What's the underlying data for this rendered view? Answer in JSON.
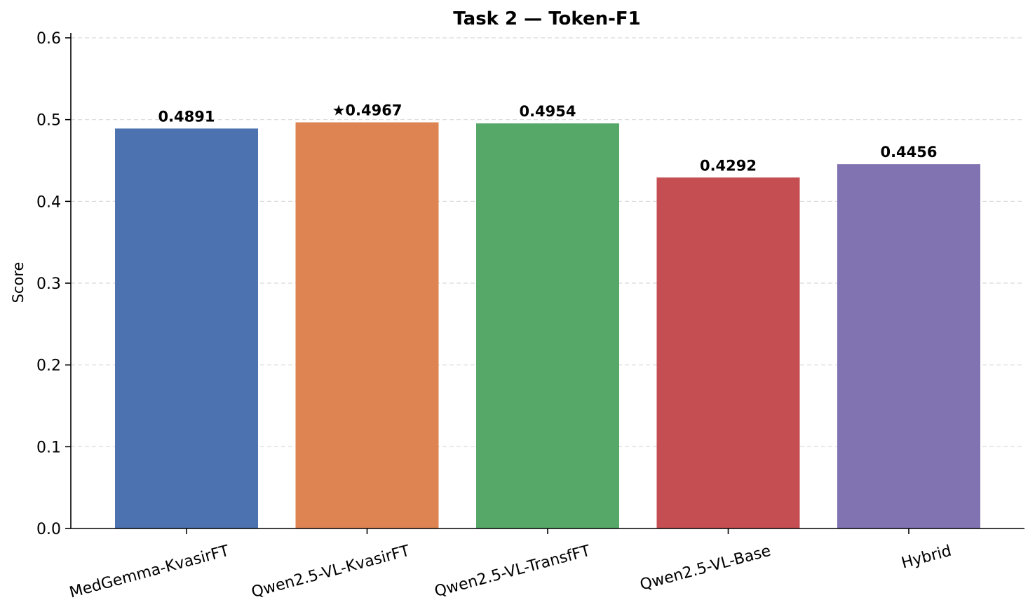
{
  "chart_data": {
    "type": "bar",
    "title": "Task 2 — Token-F1",
    "xlabel": "",
    "ylabel": "Score",
    "categories": [
      "MedGemma-KvasirFT",
      "Qwen2.5-VL-KvasirFT",
      "Qwen2.5-VL-TransfFT",
      "Qwen2.5-VL-Base",
      "Hybrid"
    ],
    "values": [
      0.4891,
      0.4967,
      0.4954,
      0.4292,
      0.4456
    ],
    "value_labels": [
      "0.4891",
      "★0.4967",
      "0.4954",
      "0.4292",
      "0.4456"
    ],
    "colors": [
      "#4c72b0",
      "#dd8452",
      "#55a868",
      "#c44e52",
      "#8172b2"
    ],
    "ylim": [
      0,
      0.6
    ],
    "yticks": [
      0.0,
      0.1,
      0.2,
      0.3,
      0.4,
      0.5,
      0.6
    ],
    "ytick_labels": [
      "0.0",
      "0.1",
      "0.2",
      "0.3",
      "0.4",
      "0.5",
      "0.6"
    ],
    "grid": "y-dashed",
    "legend": "none"
  }
}
